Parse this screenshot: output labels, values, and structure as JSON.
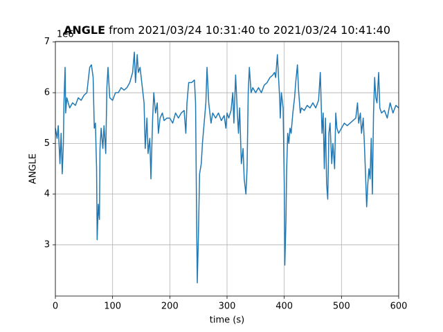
{
  "chart_data": {
    "type": "line",
    "title_bold": "ANGLE",
    "title": "from 2021/03/24 10:31:40 to 2021/03/24 10:41:40",
    "y_offset_label": "1e6",
    "xlabel": "time (s)",
    "ylabel": "ANGLE",
    "color": "#1f77b4",
    "grid": true,
    "xlim": [
      0,
      600
    ],
    "xticks": [
      0,
      100,
      200,
      300,
      400,
      500,
      600
    ],
    "ylim": [
      1.99,
      7.01
    ],
    "yticks": [
      3,
      4,
      5,
      6,
      7
    ],
    "x": [
      0,
      3,
      5,
      8,
      10,
      12,
      14,
      15,
      17,
      18,
      20,
      25,
      30,
      35,
      40,
      45,
      50,
      55,
      60,
      63,
      66,
      68,
      70,
      72,
      73,
      75,
      77,
      78,
      80,
      83,
      85,
      88,
      90,
      92,
      95,
      100,
      105,
      110,
      115,
      120,
      125,
      130,
      135,
      138,
      140,
      143,
      145,
      148,
      150,
      153,
      155,
      157,
      160,
      162,
      165,
      167,
      170,
      172,
      175,
      178,
      180,
      183,
      187,
      190,
      195,
      200,
      205,
      210,
      215,
      220,
      225,
      228,
      230,
      233,
      238,
      243,
      245,
      247,
      248,
      250,
      252,
      255,
      257,
      260,
      263,
      265,
      268,
      270,
      272,
      275,
      280,
      285,
      290,
      295,
      298,
      300,
      303,
      307,
      310,
      312,
      315,
      318,
      320,
      322,
      325,
      328,
      330,
      333,
      335,
      337,
      339,
      342,
      345,
      350,
      355,
      360,
      365,
      370,
      375,
      380,
      383,
      385,
      388,
      390,
      392,
      393,
      395,
      398,
      400,
      401,
      403,
      404,
      406,
      408,
      410,
      412,
      415,
      418,
      420,
      423,
      425,
      428,
      430,
      435,
      440,
      445,
      450,
      455,
      460,
      463,
      466,
      468,
      470,
      472,
      474,
      476,
      478,
      480,
      483,
      485,
      488,
      490,
      492,
      495,
      500,
      505,
      510,
      515,
      520,
      525,
      528,
      530,
      533,
      535,
      538,
      540,
      542,
      544,
      546,
      548,
      550,
      552,
      554,
      556,
      558,
      560,
      562,
      565,
      567,
      570,
      575,
      580,
      585,
      590,
      595,
      600
    ],
    "values": [
      5.3,
      5.1,
      5.35,
      4.6,
      5.2,
      4.4,
      5.0,
      5.8,
      6.5,
      5.6,
      5.9,
      5.7,
      5.8,
      5.75,
      5.9,
      5.85,
      5.95,
      6.0,
      6.5,
      6.55,
      6.3,
      5.3,
      5.4,
      4.5,
      3.1,
      3.8,
      3.5,
      4.9,
      5.3,
      4.9,
      5.35,
      4.8,
      6.1,
      6.5,
      5.9,
      5.85,
      6.0,
      6.0,
      6.1,
      6.05,
      6.1,
      6.2,
      6.4,
      6.8,
      6.2,
      6.75,
      6.4,
      6.5,
      6.3,
      6.0,
      5.8,
      4.9,
      5.5,
      4.8,
      5.1,
      4.3,
      5.5,
      6.0,
      5.6,
      5.8,
      5.2,
      5.5,
      5.6,
      5.45,
      5.5,
      5.5,
      5.4,
      5.6,
      5.5,
      5.6,
      5.65,
      5.2,
      5.8,
      6.2,
      6.2,
      6.25,
      5.8,
      3.3,
      2.25,
      3.2,
      4.4,
      4.6,
      5.0,
      5.4,
      5.8,
      6.5,
      5.8,
      5.6,
      5.4,
      5.6,
      5.5,
      5.6,
      5.45,
      5.55,
      5.3,
      5.6,
      5.5,
      5.65,
      6.0,
      5.4,
      6.35,
      5.6,
      5.2,
      5.7,
      4.6,
      4.9,
      4.3,
      4.0,
      4.5,
      6.0,
      6.5,
      6.0,
      6.1,
      6.0,
      6.1,
      6.0,
      6.15,
      6.2,
      6.3,
      6.35,
      6.4,
      6.3,
      6.75,
      6.3,
      5.9,
      5.5,
      6.0,
      5.7,
      4.2,
      2.6,
      3.5,
      4.4,
      5.2,
      5.0,
      5.3,
      5.2,
      5.6,
      5.9,
      6.2,
      6.55,
      6.05,
      5.6,
      5.7,
      5.65,
      5.75,
      5.7,
      5.8,
      5.7,
      5.85,
      6.4,
      5.2,
      5.6,
      4.5,
      5.5,
      4.2,
      3.9,
      5.2,
      5.4,
      4.6,
      5.0,
      4.5,
      5.6,
      5.3,
      5.2,
      5.3,
      5.4,
      5.35,
      5.4,
      5.45,
      5.5,
      5.8,
      5.4,
      5.6,
      5.2,
      5.5,
      5.0,
      4.4,
      3.75,
      4.2,
      4.5,
      4.3,
      5.1,
      4.0,
      5.6,
      6.3,
      5.9,
      5.8,
      6.4,
      5.7,
      5.6,
      5.65,
      5.5,
      5.8,
      5.6,
      5.75,
      5.7
    ]
  }
}
